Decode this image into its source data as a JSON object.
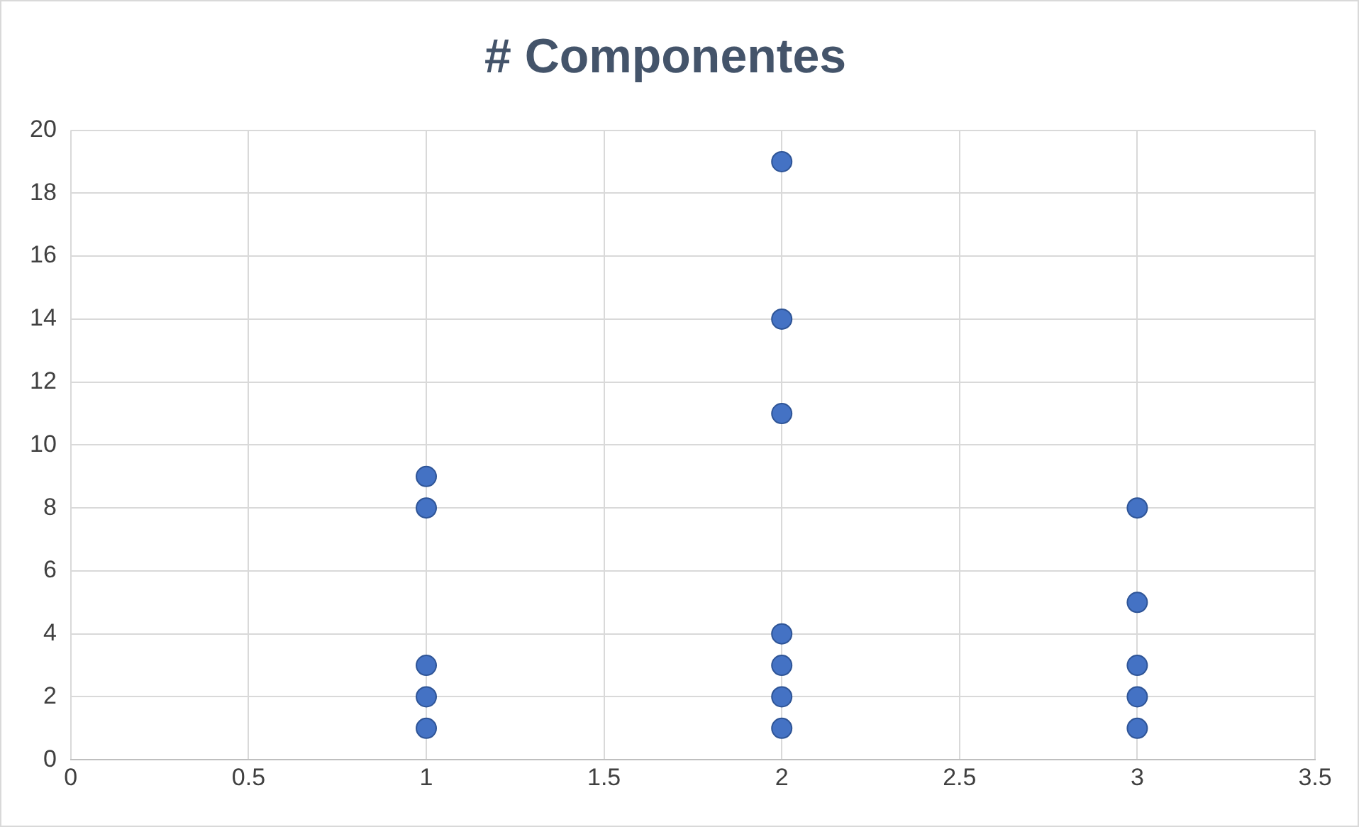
{
  "chart_data": {
    "type": "scatter",
    "title": "# Componentes",
    "series": [
      {
        "color": "#4472c4",
        "x": [
          1,
          1,
          1,
          1,
          1,
          2,
          2,
          2,
          2,
          2,
          2,
          2,
          3,
          3,
          3,
          3,
          3
        ],
        "values": [
          1,
          2,
          3,
          8,
          9,
          1,
          2,
          3,
          4,
          11,
          14,
          19,
          1,
          2,
          3,
          5,
          8
        ]
      }
    ],
    "xlim": [
      0,
      3.5
    ],
    "xticks": [
      0,
      0.5,
      1,
      1.5,
      2,
      2.5,
      3,
      3.5
    ],
    "ylim": [
      0,
      20
    ],
    "yticks": [
      0,
      2,
      4,
      6,
      8,
      10,
      12,
      14,
      16,
      18,
      20
    ],
    "grid": true,
    "legend": false,
    "marker": "circle"
  }
}
